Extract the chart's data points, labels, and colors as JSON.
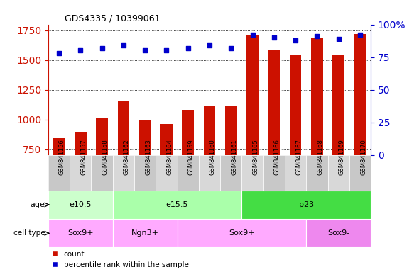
{
  "title": "GDS4335 / 10399061",
  "samples": [
    "GSM841156",
    "GSM841157",
    "GSM841158",
    "GSM841162",
    "GSM841163",
    "GSM841164",
    "GSM841159",
    "GSM841160",
    "GSM841161",
    "GSM841165",
    "GSM841166",
    "GSM841167",
    "GSM841168",
    "GSM841169",
    "GSM841170"
  ],
  "counts": [
    840,
    890,
    1010,
    1150,
    1000,
    960,
    1080,
    1110,
    1110,
    1710,
    1590,
    1545,
    1690,
    1545,
    1720
  ],
  "percentiles": [
    78,
    80,
    82,
    84,
    80,
    80,
    82,
    84,
    82,
    92,
    90,
    88,
    91,
    89,
    92
  ],
  "ylim_left": [
    700,
    1800
  ],
  "ylim_right": [
    0,
    100
  ],
  "yticks_left": [
    750,
    1000,
    1250,
    1500,
    1750
  ],
  "yticks_right": [
    0,
    25,
    50,
    75,
    100
  ],
  "bar_color": "#cc1100",
  "dot_color": "#0000cc",
  "ticklabel_bg": "#d8d8d8",
  "age_groups": [
    {
      "label": "e10.5",
      "start": 0,
      "end": 3,
      "color": "#ccffcc"
    },
    {
      "label": "e15.5",
      "start": 3,
      "end": 9,
      "color": "#aaffaa"
    },
    {
      "label": "p23",
      "start": 9,
      "end": 15,
      "color": "#44dd44"
    }
  ],
  "cell_type_groups": [
    {
      "label": "Sox9+",
      "start": 0,
      "end": 3,
      "color": "#ffaaff"
    },
    {
      "label": "Ngn3+",
      "start": 3,
      "end": 6,
      "color": "#ffaaff"
    },
    {
      "label": "Sox9+",
      "start": 6,
      "end": 12,
      "color": "#ffaaff"
    },
    {
      "label": "Sox9-",
      "start": 12,
      "end": 15,
      "color": "#ee88ee"
    }
  ],
  "tick_label_color_left": "#cc1100",
  "tick_label_color_right": "#0000cc",
  "grid_color": "#000000",
  "fig_width": 5.9,
  "fig_height": 3.84,
  "dpi": 100
}
